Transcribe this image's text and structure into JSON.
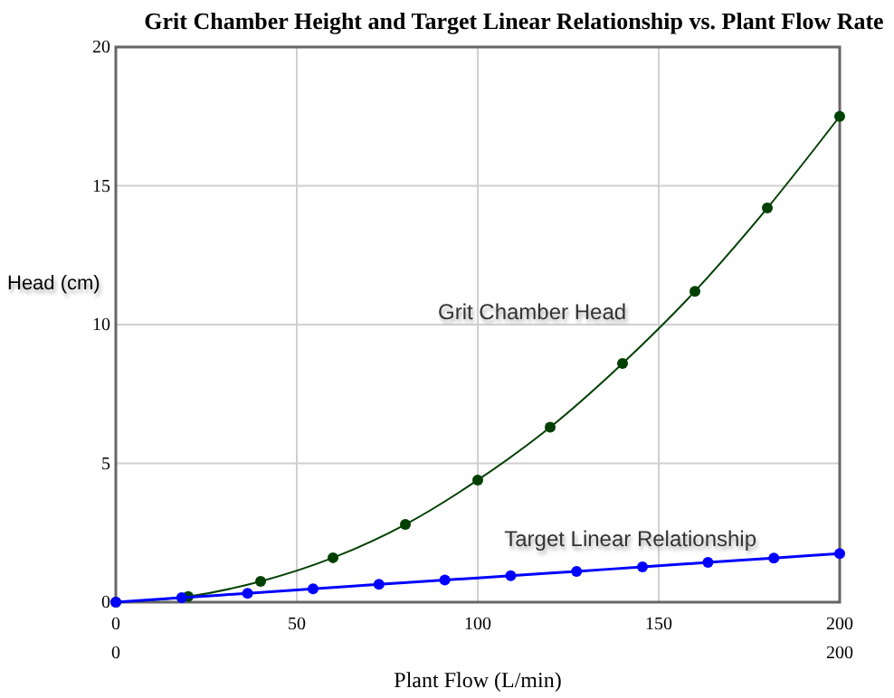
{
  "chart_data": {
    "type": "line",
    "title": "Grit Chamber Height and Target Linear Relationship vs. Plant Flow Rate",
    "xlabel": "Plant Flow (L/min)",
    "ylabel": "Head (cm)",
    "series": [
      {
        "name": "Grit Chamber Head",
        "color": "#004000",
        "x": [
          0,
          20,
          40,
          60,
          80,
          100,
          120,
          140,
          160,
          180,
          200
        ],
        "values": [
          0,
          0.2,
          0.75,
          1.6,
          2.8,
          4.4,
          6.3,
          8.6,
          11.2,
          14.2,
          17.5
        ]
      },
      {
        "name": "Target Linear Relationship",
        "color": "#0000ff",
        "x": [
          0,
          18.2,
          36.4,
          54.5,
          72.7,
          90.9,
          109.1,
          127.3,
          145.5,
          163.6,
          181.8,
          200
        ],
        "values": [
          0,
          0.16,
          0.32,
          0.48,
          0.64,
          0.8,
          0.95,
          1.11,
          1.27,
          1.43,
          1.59,
          1.75
        ]
      }
    ],
    "xlim": [
      0,
      200
    ],
    "xticks": [
      0,
      50,
      100,
      150,
      200
    ],
    "ylim": [
      0,
      20
    ],
    "yticks": [
      0,
      5,
      10,
      15,
      20
    ],
    "x2lim": [
      0,
      200
    ],
    "x2ticks": [
      0,
      200
    ],
    "grid": true,
    "legend": false,
    "marker": "circle",
    "line_style": "solid"
  }
}
